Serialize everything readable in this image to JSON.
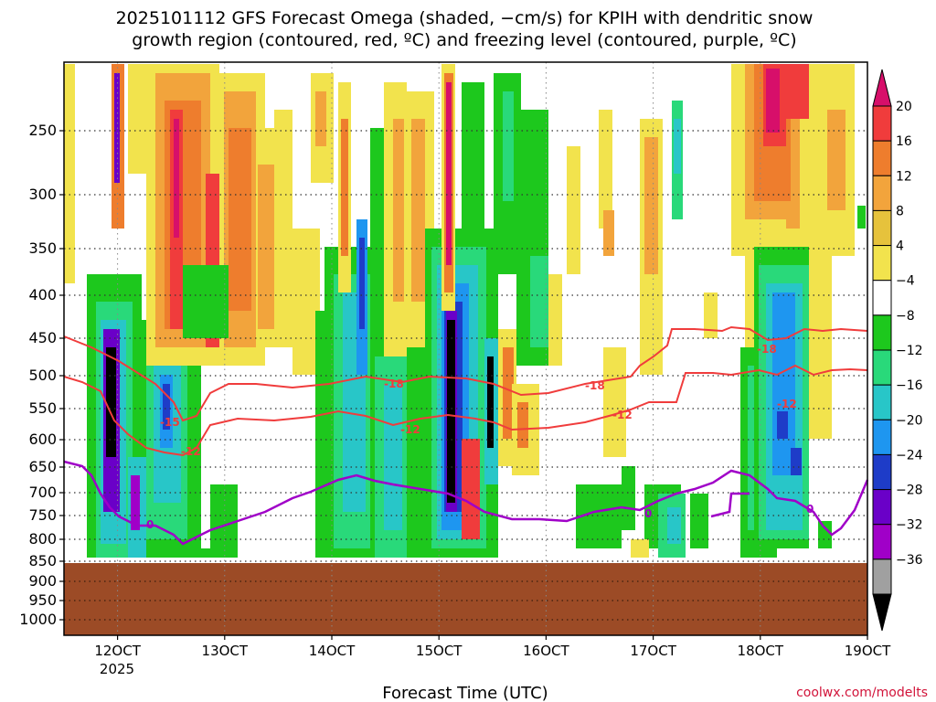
{
  "chart_data": {
    "type": "heatmap",
    "title_line1": "2025101112 GFS Forecast Omega (shaded, −cm/s) for KPIH with dendritic snow",
    "title_line2": "growth region (contoured, red, ºC) and freezing level (contoured, purple, ºC)",
    "xlabel": "Forecast Time (UTC)",
    "credit": "coolwx.com/modelts",
    "x_ticks": [
      {
        "day": 12,
        "label": "12OCT"
      },
      {
        "day": 13,
        "label": "13OCT"
      },
      {
        "day": 14,
        "label": "14OCT"
      },
      {
        "day": 15,
        "label": "15OCT"
      },
      {
        "day": 16,
        "label": "16OCT"
      },
      {
        "day": 17,
        "label": "17OCT"
      },
      {
        "day": 18,
        "label": "18OCT"
      },
      {
        "day": 19,
        "label": "19OCT"
      }
    ],
    "x_year_label": "2025",
    "xlim": [
      11.5,
      19.0
    ],
    "y_ticks": [
      250,
      300,
      350,
      400,
      450,
      500,
      550,
      600,
      650,
      700,
      750,
      800,
      850,
      900,
      950,
      1000
    ],
    "ylim_hpa": [
      1025,
      200
    ],
    "surface_hpa": 855,
    "colorbar": {
      "labels": [
        "20",
        "16",
        "12",
        "8",
        "4",
        "−4",
        "−8",
        "−12",
        "−16",
        "−20",
        "−24",
        "−28",
        "−32",
        "−36"
      ],
      "colors": [
        "#d70f6a",
        "#f03c3c",
        "#ee7d2d",
        "#f2a43c",
        "#e6c23c",
        "#f2e34d",
        "#ffffff",
        "#1dc81d",
        "#29d97a",
        "#28c6c8",
        "#1e96f0",
        "#1e3cc8",
        "#6a00c8",
        "#a000c8",
        "#a0a0a0",
        "#000000"
      ]
    },
    "contour_labels": [
      "-18",
      "-18",
      "-18",
      "-15",
      "-12",
      "-12",
      "-12",
      "-12",
      "0",
      "0",
      "0"
    ],
    "grid": true
  }
}
